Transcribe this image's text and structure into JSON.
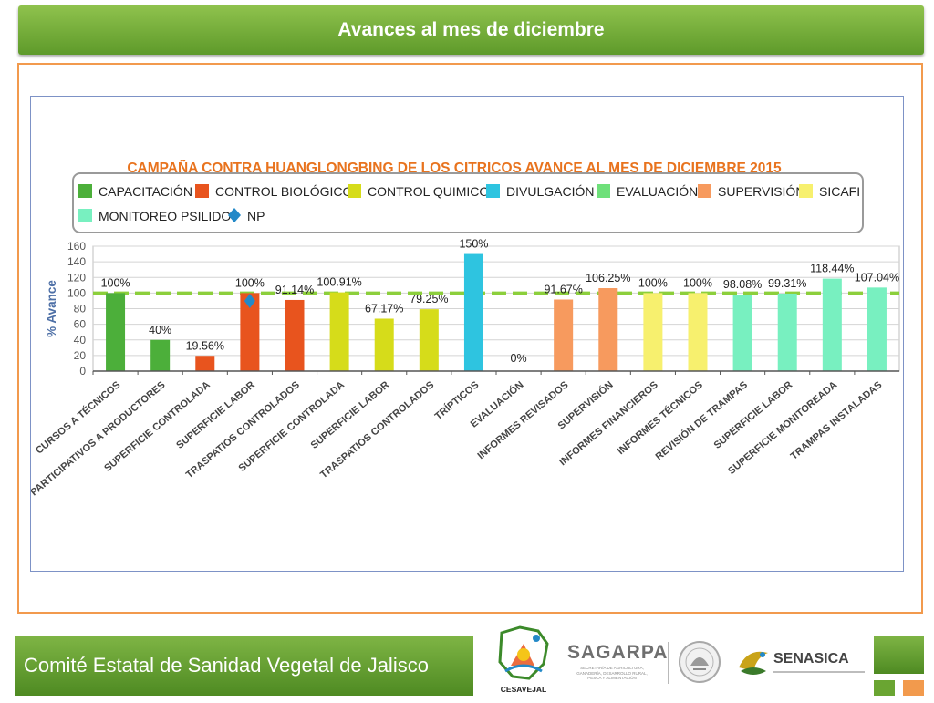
{
  "header": {
    "title": "Avances al mes de diciembre"
  },
  "footer": {
    "org_name": "Comité Estatal de Sanidad Vegetal de Jalisco",
    "logo_cesavejal": "CESAVEJAL",
    "logo_sagarpa": "SAGARPA",
    "logo_sagarpa_sub": "SECRETARÍA DE AGRICULTURA, GANADERÍA, DESARROLLO RURAL, PESCA Y ALIMENTACIÓN",
    "logo_senasica": "SENASICA"
  },
  "colors": {
    "header_green": "#6aa532",
    "frame_orange": "#f29a4d",
    "title_orange": "#e8731e",
    "reference_line": "#8ccf3c"
  },
  "chart_data": {
    "type": "bar",
    "title": "CAMPAÑA CONTRA HUANGLONGBING DE LOS CITRICOS AVANCE AL MES DE DICIEMBRE 2015",
    "ylabel": "% Avance",
    "ylim": [
      0,
      160
    ],
    "yticks": [
      "0",
      "20",
      "40",
      "60",
      "80",
      "100",
      "120",
      "140",
      "160"
    ],
    "grid": true,
    "legend_position": "top",
    "legend": [
      {
        "name": "CAPACITACIÓN",
        "color": "#4caf3a",
        "shape": "square"
      },
      {
        "name": "CONTROL BIOLÓGICO",
        "color": "#e8541e",
        "shape": "square"
      },
      {
        "name": "CONTROL QUIMICO",
        "color": "#d6dc1a",
        "shape": "square"
      },
      {
        "name": "DIVULGACIÓN",
        "color": "#2ec4e0",
        "shape": "square"
      },
      {
        "name": "EVALUACIÓN",
        "color": "#6ee07a",
        "shape": "square"
      },
      {
        "name": "SUPERVISIÓN",
        "color": "#f79a5e",
        "shape": "square"
      },
      {
        "name": "SICAFI",
        "color": "#f7f06e",
        "shape": "square"
      },
      {
        "name": "MONITOREO PSILIDO",
        "color": "#78f0c0",
        "shape": "square"
      },
      {
        "name": "NP",
        "color": "#2389c8",
        "shape": "diamond"
      }
    ],
    "categories": [
      "CURSOS A TÉCNICOS",
      "PARTICIPATIVOS A PRODUCTORES",
      "SUPERFICIE CONTROLADA",
      "SUPERFICIE LABOR",
      "TRASPATIOS CONTROLADOS",
      "SUPERFICIE CONTROLADA",
      "SUPERFICIE LABOR",
      "TRASPATIOS CONTROLADOS",
      "TRÍPTICOS",
      "EVALUACIÓN",
      "INFORMES REVISADOS",
      "SUPERVISIÓN",
      "INFORMES FINANCIEROS",
      "INFORMES TÉCNICOS",
      "REVISIÓN DE TRAMPAS",
      "SUPERFICIE LABOR",
      "SUPERFICIE MONITOREADA",
      "TRAMPAS INSTALADAS"
    ],
    "values": [
      100,
      40,
      19.56,
      100,
      91.14,
      100.91,
      67.17,
      79.25,
      150,
      0,
      91.67,
      106.25,
      100,
      100,
      98.08,
      99.31,
      118.44,
      107.04
    ],
    "data_labels": [
      "100%",
      "40%",
      "19.56%",
      "100%",
      "91.14%",
      "100.91%",
      "67.17%",
      "79.25%",
      "150%",
      "0%",
      "91.67%",
      "106.25%",
      "100%",
      "100%",
      "98.08%",
      "99.31%",
      "118.44%",
      "107.04%"
    ],
    "bar_groups": [
      "CAPACITACIÓN",
      "CAPACITACIÓN",
      "CONTROL BIOLÓGICO",
      "CONTROL BIOLÓGICO",
      "CONTROL BIOLÓGICO",
      "CONTROL QUIMICO",
      "CONTROL QUIMICO",
      "CONTROL QUIMICO",
      "DIVULGACIÓN",
      "EVALUACIÓN",
      "SUPERVISIÓN",
      "SUPERVISIÓN",
      "SICAFI",
      "SICAFI",
      "MONITOREO PSILIDO",
      "MONITOREO PSILIDO",
      "MONITOREO PSILIDO",
      "MONITOREO PSILIDO"
    ],
    "markers": [
      {
        "series": "NP",
        "category_index": 3,
        "value": 90
      }
    ],
    "reference_line": 100
  }
}
